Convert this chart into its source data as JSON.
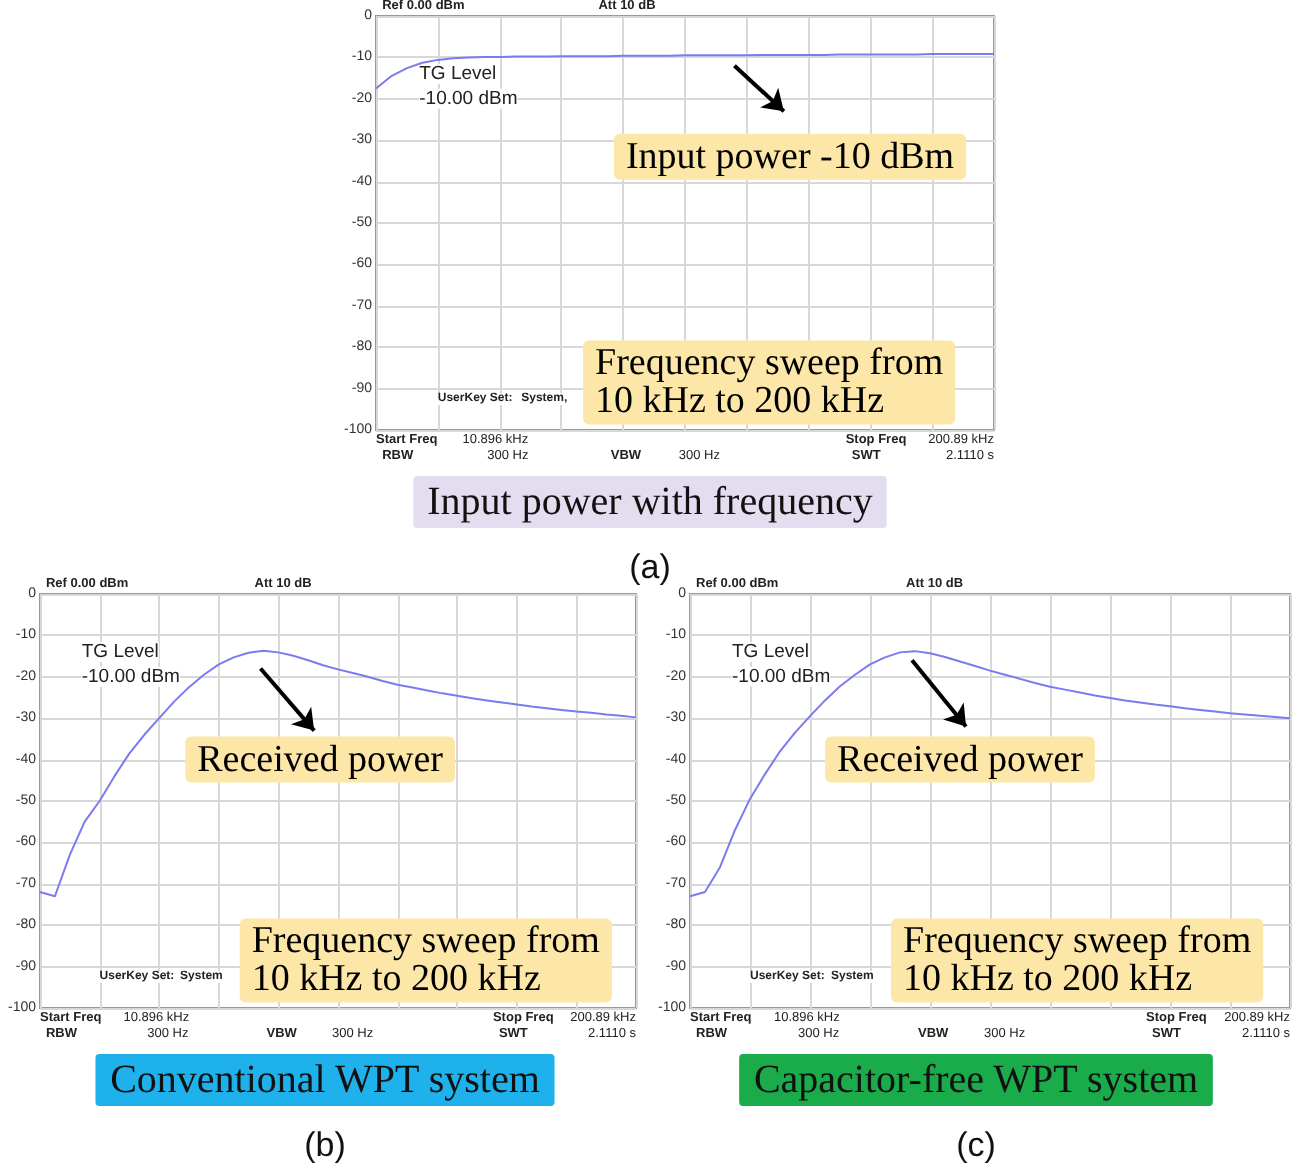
{
  "chart_data": [
    {
      "type": "line",
      "title": "Input power with frequency",
      "subtitle": "(a)",
      "categories": [
        null,
        null,
        null,
        null,
        null,
        null,
        null,
        null,
        null,
        null,
        null,
        null,
        null,
        null,
        null,
        null,
        null,
        null,
        null,
        null,
        null,
        null,
        null,
        null,
        null,
        null,
        null,
        null,
        null,
        null,
        null,
        null,
        null,
        null,
        null,
        null,
        null,
        null,
        null,
        null,
        null
      ],
      "ylim": [
        -100,
        0
      ],
      "yticks": [
        0,
        -10,
        -20,
        -30,
        -40,
        -50,
        -60,
        -70,
        -80,
        -90,
        -100
      ],
      "grid": true,
      "tick_labels": "y",
      "series": [
        {
          "color": "#7b7bef",
          "values": [
            -17.5,
            -14.5,
            -12.6,
            -11.3,
            -10.6,
            -10.2,
            -10,
            -9.9,
            -9.9,
            -9.8,
            -9.8,
            -9.8,
            -9.7,
            -9.7,
            -9.7,
            -9.7,
            -9.6,
            -9.6,
            -9.6,
            -9.6,
            -9.5,
            -9.5,
            -9.5,
            -9.5,
            -9.5,
            -9.4,
            -9.4,
            -9.4,
            -9.4,
            -9.4,
            -9.3,
            -9.3,
            -9.3,
            -9.3,
            -9.3,
            -9.3,
            -9.2,
            -9.2,
            -9.2,
            -9.2,
            -9.2
          ]
        }
      ],
      "annotations": [
        "Ref 0.00 dBm",
        "Att 10 dB",
        "TG Level",
        "-10.00 dBm",
        "UserKey Set:",
        "System,",
        "Start Freq",
        "10.896 kHz",
        "Stop Freq",
        "200.89 kHz",
        "RBW",
        "300 Hz",
        "VBW",
        "300 Hz",
        "SWT",
        "2.1110 s",
        "Input power -10 dBm",
        "Frequency sweep from\n10 kHz to 200 kHz"
      ]
    },
    {
      "type": "line",
      "title": "Conventional WPT system",
      "subtitle": "(b)",
      "categories": [
        null,
        null,
        null,
        null,
        null,
        null,
        null,
        null,
        null,
        null,
        null,
        null,
        null,
        null,
        null,
        null,
        null,
        null,
        null,
        null,
        null,
        null,
        null,
        null,
        null,
        null,
        null,
        null,
        null,
        null,
        null,
        null,
        null,
        null,
        null,
        null,
        null,
        null,
        null,
        null,
        null
      ],
      "ylim": [
        -100,
        0
      ],
      "yticks": [
        0,
        -10,
        -20,
        -30,
        -40,
        -50,
        -60,
        -70,
        -80,
        -90,
        -100
      ],
      "grid": true,
      "tick_labels": "y",
      "series": [
        {
          "color": "#7b7bef",
          "values": [
            -72,
            -73,
            -63,
            -55,
            -50,
            -44,
            -38.5,
            -34,
            -30,
            -26,
            -22.5,
            -19.5,
            -17,
            -15.3,
            -14.2,
            -13.7,
            -14.1,
            -14.9,
            -16,
            -17.2,
            -18.2,
            -19.1,
            -20,
            -21,
            -21.9,
            -22.6,
            -23.3,
            -24,
            -24.6,
            -25.2,
            -25.7,
            -26.2,
            -26.7,
            -27.2,
            -27.6,
            -28,
            -28.4,
            -28.7,
            -29.1,
            -29.4,
            -29.8
          ]
        }
      ],
      "annotations": [
        "Ref 0.00 dBm",
        "Att 10 dB",
        "TG Level",
        "-10.00 dBm",
        "UserKey Set:",
        "System",
        "Start Freq",
        "10.896 kHz",
        "Stop Freq",
        "200.89 kHz",
        "RBW",
        "300 Hz",
        "VBW",
        "300 Hz",
        "SWT",
        "2.1110 s",
        "Received power",
        "Frequency sweep from\n10 kHz to 200 kHz"
      ]
    },
    {
      "type": "line",
      "title": "Capacitor-free WPT system",
      "subtitle": "(c)",
      "categories": [
        null,
        null,
        null,
        null,
        null,
        null,
        null,
        null,
        null,
        null,
        null,
        null,
        null,
        null,
        null,
        null,
        null,
        null,
        null,
        null,
        null,
        null,
        null,
        null,
        null,
        null,
        null,
        null,
        null,
        null,
        null,
        null,
        null,
        null,
        null,
        null,
        null,
        null,
        null,
        null,
        null
      ],
      "ylim": [
        -100,
        0
      ],
      "yticks": [
        0,
        -10,
        -20,
        -30,
        -40,
        -50,
        -60,
        -70,
        -80,
        -90,
        -100
      ],
      "grid": true,
      "tick_labels": "y",
      "series": [
        {
          "color": "#7b7bef",
          "values": [
            -73,
            -72,
            -66,
            -57,
            -49.5,
            -43.5,
            -38,
            -33.5,
            -29.5,
            -25.7,
            -22.3,
            -19.5,
            -17,
            -15.3,
            -14.1,
            -13.8,
            -14.3,
            -15.2,
            -16.3,
            -17.4,
            -18.5,
            -19.5,
            -20.5,
            -21.5,
            -22.4,
            -23.1,
            -23.8,
            -24.5,
            -25.1,
            -25.7,
            -26.2,
            -26.7,
            -27.1,
            -27.6,
            -28,
            -28.4,
            -28.8,
            -29.1,
            -29.4,
            -29.7,
            -30
          ]
        }
      ],
      "annotations": [
        "Ref 0.00 dBm",
        "Att 10 dB",
        "TG Level",
        "-10.00 dBm",
        "UserKey Set:",
        "System",
        "Start Freq",
        "10.896 kHz",
        "Stop Freq",
        "200.89 kHz",
        "RBW",
        "300 Hz",
        "VBW",
        "300 Hz",
        "SWT",
        "2.1110 s",
        "Received power",
        "Frequency sweep from\n10 kHz to 200 kHz"
      ]
    }
  ]
}
